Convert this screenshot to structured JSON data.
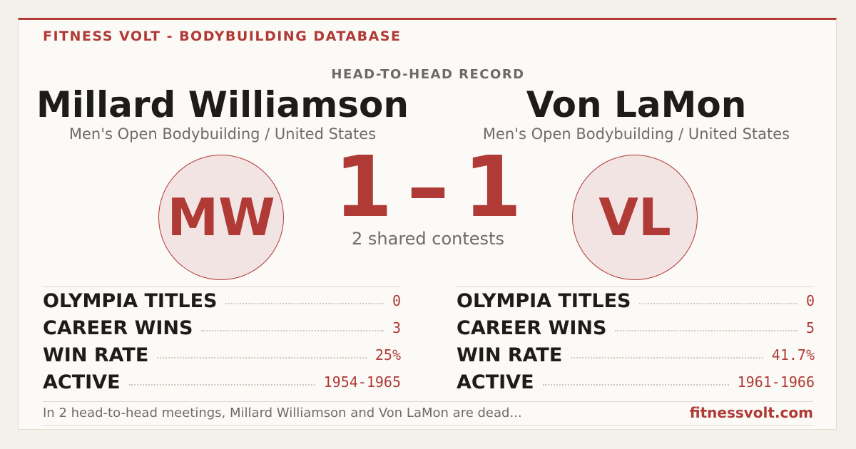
{
  "header": {
    "brand": "FITNESS VOLT - BODYBUILDING DATABASE",
    "label": "HEAD-TO-HEAD RECORD"
  },
  "left": {
    "name": "Millard Williamson",
    "subtitle": "Men's Open Bodybuilding / United States",
    "initials": "MW",
    "stats": [
      {
        "label": "OLYMPIA TITLES",
        "value": "0"
      },
      {
        "label": "CAREER WINS",
        "value": "3"
      },
      {
        "label": "WIN RATE",
        "value": "25%"
      },
      {
        "label": "ACTIVE",
        "value": "1954-1965"
      }
    ]
  },
  "right": {
    "name": "Von LaMon",
    "subtitle": "Men's Open Bodybuilding / United States",
    "initials": "VL",
    "stats": [
      {
        "label": "OLYMPIA TITLES",
        "value": "0"
      },
      {
        "label": "CAREER WINS",
        "value": "5"
      },
      {
        "label": "WIN RATE",
        "value": "41.7%"
      },
      {
        "label": "ACTIVE",
        "value": "1961-1966"
      }
    ]
  },
  "score": {
    "left": "1",
    "separator": "–",
    "right": "1",
    "caption": "2 shared contests"
  },
  "footer": {
    "summary": "In 2 head-to-head meetings, Millard Williamson and Von LaMon are dead...",
    "site": "fitnessvolt.com"
  }
}
